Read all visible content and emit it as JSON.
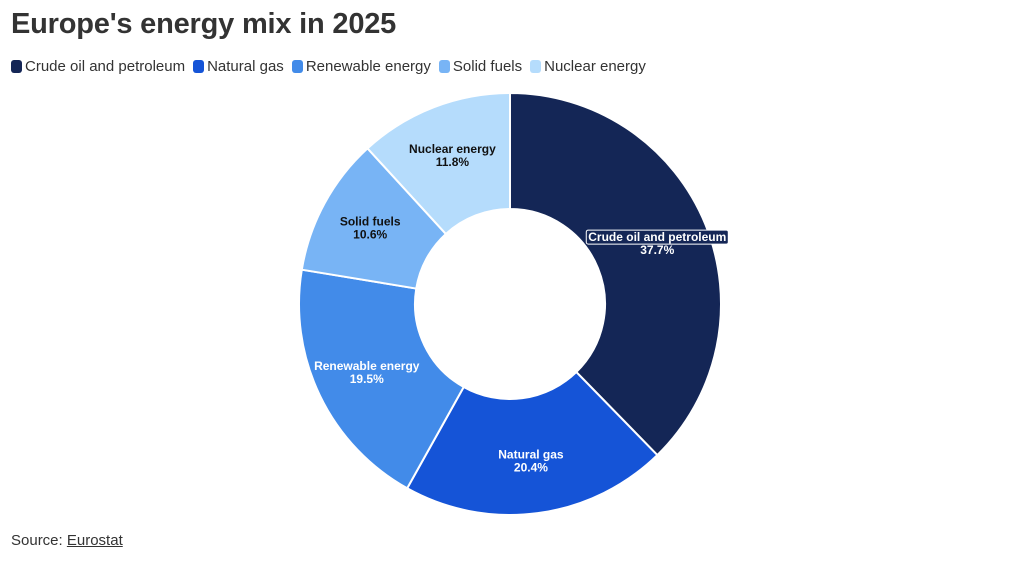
{
  "chart_data": {
    "type": "pie",
    "title": "Europe's energy mix in 2025",
    "categories": [
      "Crude oil and petroleum",
      "Natural gas",
      "Renewable energy",
      "Solid fuels",
      "Nuclear energy"
    ],
    "values": [
      37.7,
      20.4,
      19.5,
      10.6,
      11.8
    ],
    "value_labels": [
      "37.7%",
      "20.4%",
      "19.5%",
      "10.6%",
      "11.8%"
    ],
    "colors": [
      "#142656",
      "#1554d7",
      "#428be9",
      "#78b4f5",
      "#b5dcfc"
    ],
    "label_colors": [
      "#ffffff",
      "#ffffff",
      "#ffffff",
      "#111111",
      "#111111"
    ],
    "donut": true,
    "legend_position": "top-left"
  },
  "source": {
    "prefix": "Source: ",
    "link_text": "Eurostat"
  }
}
